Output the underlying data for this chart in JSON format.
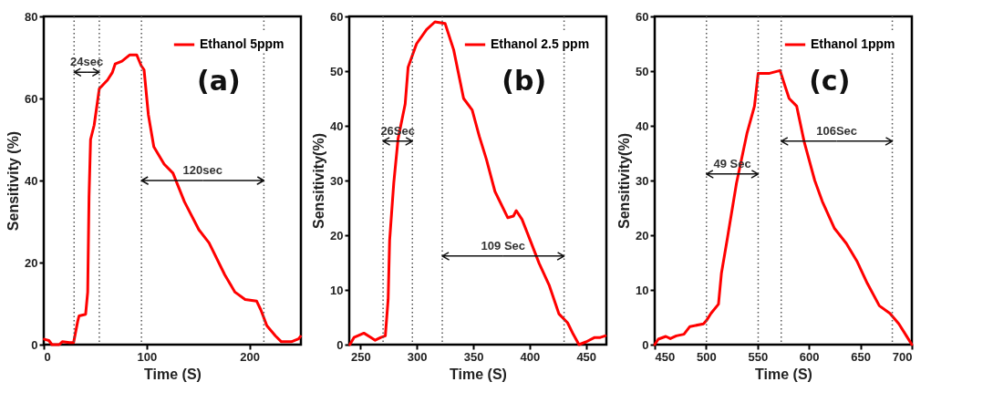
{
  "chart_data": [
    {
      "type": "line",
      "xlabel": "Time (S)",
      "ylabel": "Sensitivity (%)",
      "xlim": [
        0,
        250
      ],
      "ylim": [
        0,
        80
      ],
      "xticks": [
        0,
        100,
        200
      ],
      "yticks": [
        0,
        20,
        40,
        60,
        80
      ],
      "legend": "top right",
      "series": [
        {
          "name": "Ethanol 5ppm",
          "color": "#ff0000",
          "x": [
            0.5,
            5,
            8,
            15,
            18,
            25,
            29,
            33,
            34.3,
            40.7,
            42.7,
            44,
            45.5,
            49,
            54,
            62,
            66.6,
            69.4,
            76,
            83.4,
            90.4,
            94.7,
            97.5,
            101.7,
            107,
            117,
            125.6,
            136.8,
            150.8,
            160.7,
            176,
            185.9,
            195.8,
            207,
            211,
            216.9,
            225.3,
            231,
            240.7,
            247.8,
            249.5
          ],
          "values": [
            1.3,
            1,
            0,
            0,
            0.7,
            0.5,
            0.5,
            5.7,
            7,
            7.4,
            12.8,
            36,
            50,
            53.5,
            62.4,
            64.5,
            66.3,
            68.4,
            69.1,
            70.6,
            70.6,
            68,
            67,
            56,
            48.2,
            44,
            41.8,
            34.8,
            28,
            24.8,
            17,
            12.8,
            11,
            10.6,
            8.5,
            4.6,
            2.1,
            0.7,
            0.7,
            1.4,
            2
          ]
        }
      ],
      "ref_lines": [
        {
          "axis": "x",
          "value": 29.5,
          "color": "#555555",
          "line_style": "dotted"
        },
        {
          "axis": "x",
          "value": 54,
          "color": "#555555",
          "line_style": "dotted"
        },
        {
          "axis": "x",
          "value": 95,
          "color": "#555555",
          "line_style": "dotted"
        },
        {
          "axis": "x",
          "value": 214,
          "color": "#555555",
          "line_style": "dotted"
        }
      ],
      "annotations": [
        "(a)",
        "24sec",
        "120sec"
      ]
    },
    {
      "type": "line",
      "xlabel": "Time (S)",
      "ylabel": "Sensitivity(%)",
      "xlim": [
        240,
        468
      ],
      "ylim": [
        0,
        60
      ],
      "xticks": [
        250,
        300,
        350,
        400,
        450
      ],
      "yticks": [
        0,
        10,
        20,
        30,
        40,
        50,
        60
      ],
      "legend": "top right",
      "series": [
        {
          "name": "Ethanol 2.5 ppm",
          "color": "#ff0000",
          "x": [
            240.5,
            244.2,
            253,
            259.3,
            263,
            268,
            272,
            274.5,
            275.8,
            279.5,
            283.3,
            289.6,
            292.2,
            299.7,
            308.6,
            316,
            325,
            332.6,
            341.4,
            349,
            355.3,
            361.6,
            369.2,
            380.6,
            385.6,
            388.1,
            393.2,
            400.8,
            408.3,
            417.2,
            426,
            433.6,
            438.6,
            443.7,
            450,
            457.6,
            462.6,
            467
          ],
          "values": [
            0,
            1.3,
            2.1,
            1.3,
            0.8,
            1.3,
            1.6,
            8.3,
            19,
            29.6,
            37.6,
            44,
            50.7,
            55,
            57.6,
            59,
            58.7,
            53.9,
            45,
            42.9,
            38.1,
            33.9,
            28,
            23.2,
            23.5,
            24.5,
            22.9,
            18.9,
            14.9,
            10.9,
            5.6,
            4,
            1.9,
            0,
            0.5,
            1.3,
            1.3,
            1.6
          ]
        }
      ],
      "ref_lines": [
        {
          "axis": "x",
          "value": 270,
          "color": "#555555",
          "line_style": "dotted"
        },
        {
          "axis": "x",
          "value": 296,
          "color": "#555555",
          "line_style": "dotted"
        },
        {
          "axis": "x",
          "value": 322.5,
          "color": "#555555",
          "line_style": "dotted"
        },
        {
          "axis": "x",
          "value": 430.5,
          "color": "#555555",
          "line_style": "dotted"
        }
      ],
      "annotations": [
        "(b)",
        "26Sec",
        "109 Sec"
      ]
    },
    {
      "type": "line",
      "xlabel": "Time (S)",
      "ylabel": "Sensitivity(%)",
      "xlim": [
        450,
        700
      ],
      "ylim": [
        0,
        60
      ],
      "xticks": [
        450,
        500,
        550,
        600,
        650,
        700
      ],
      "yticks": [
        0,
        10,
        20,
        30,
        40,
        50,
        60
      ],
      "legend": "top right",
      "series": [
        {
          "name": "Ethanol 1ppm",
          "color": "#ff0000",
          "x": [
            450,
            453.5,
            460.8,
            465.2,
            471,
            478.4,
            484.2,
            497.4,
            500.3,
            504.7,
            512,
            514.9,
            520.8,
            529.5,
            539.8,
            547,
            550.6,
            561.7,
            571.9,
            576.3,
            580.7,
            588,
            595.3,
            605.6,
            612.9,
            624.6,
            636.3,
            646.5,
            656.7,
            668.4,
            678.7,
            687.4,
            694.7,
            700
          ],
          "values": [
            0,
            1,
            1.5,
            1.1,
            1.6,
            1.9,
            3.3,
            3.8,
            4.4,
            5.7,
            7.4,
            13.1,
            19.6,
            29.5,
            38.7,
            43.6,
            49.6,
            49.6,
            50.1,
            47.5,
            45,
            43.6,
            37.1,
            30,
            26.2,
            21.3,
            18.5,
            15.3,
            11.2,
            7.1,
            5.7,
            3.8,
            1.6,
            0
          ]
        }
      ],
      "ref_lines": [
        {
          "axis": "x",
          "value": 500.3,
          "color": "#555555",
          "line_style": "dotted"
        },
        {
          "axis": "x",
          "value": 550.6,
          "color": "#555555",
          "line_style": "dotted"
        },
        {
          "axis": "x",
          "value": 573,
          "color": "#555555",
          "line_style": "dotted"
        },
        {
          "axis": "x",
          "value": 681,
          "color": "#555555",
          "line_style": "dotted"
        }
      ],
      "annotations": [
        "(c)",
        "49 Sec",
        "106Sec"
      ]
    }
  ]
}
